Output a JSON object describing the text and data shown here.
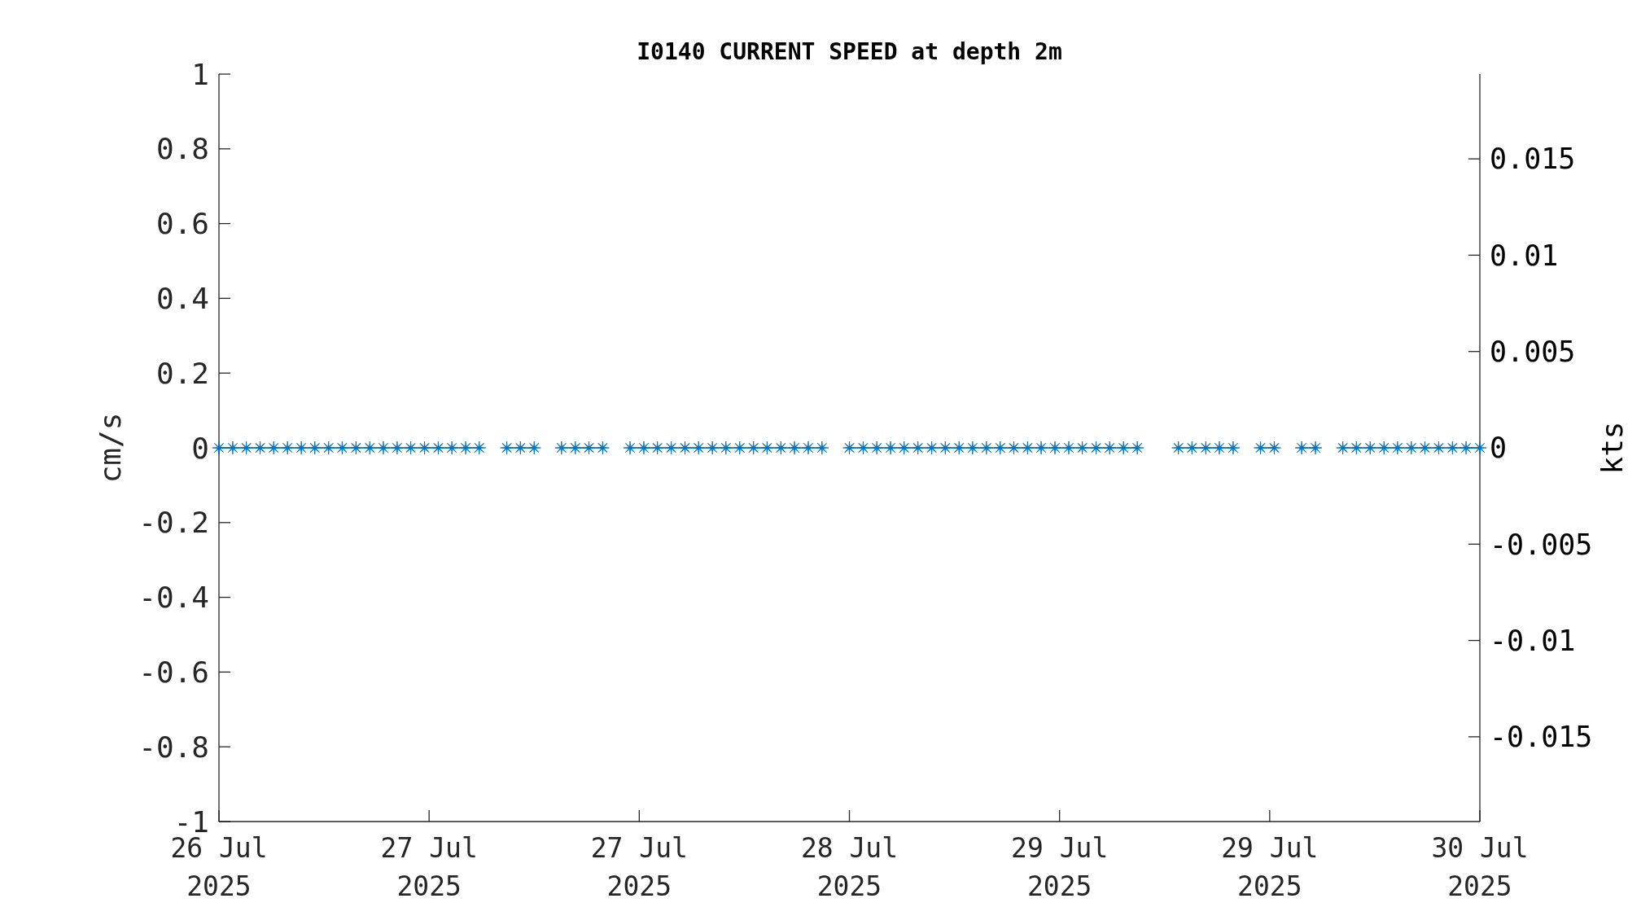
{
  "chart_data": {
    "type": "line",
    "title": "I0140 CURRENT SPEED at depth 2m",
    "ylabel": "cm/s",
    "y2label": "kts",
    "x": [
      "2025-07-26T08:00",
      "2025-07-26T09:03",
      "2025-07-26T10:05",
      "2025-07-26T11:08",
      "2025-07-26T12:10",
      "2025-07-26T13:13",
      "2025-07-26T14:16",
      "2025-07-26T15:18",
      "2025-07-26T16:21",
      "2025-07-26T17:23",
      "2025-07-26T18:26",
      "2025-07-26T19:29",
      "2025-07-26T20:31",
      "2025-07-26T21:34",
      "2025-07-26T22:36",
      "2025-07-26T23:39",
      "2025-07-27T00:42",
      "2025-07-27T01:44",
      "2025-07-27T02:47",
      "2025-07-27T03:49",
      "2025-07-27T04:52",
      "2025-07-27T05:55",
      "2025-07-27T06:57",
      "2025-07-27T08:00",
      "2025-07-27T09:03",
      "2025-07-27T10:05",
      "2025-07-27T11:08",
      "2025-07-27T12:10",
      "2025-07-27T13:13",
      "2025-07-27T14:16",
      "2025-07-27T15:18",
      "2025-07-27T16:21",
      "2025-07-27T17:23",
      "2025-07-27T18:26",
      "2025-07-27T19:29",
      "2025-07-27T20:31",
      "2025-07-27T21:34",
      "2025-07-27T22:36",
      "2025-07-27T23:39",
      "2025-07-28T00:42",
      "2025-07-28T01:44",
      "2025-07-28T02:47",
      "2025-07-28T03:49",
      "2025-07-28T04:52",
      "2025-07-28T05:55",
      "2025-07-28T06:57",
      "2025-07-28T08:00",
      "2025-07-28T09:03",
      "2025-07-28T10:05",
      "2025-07-28T11:08",
      "2025-07-28T12:10",
      "2025-07-28T13:13",
      "2025-07-28T14:16",
      "2025-07-28T15:18",
      "2025-07-28T16:21",
      "2025-07-28T17:23",
      "2025-07-28T18:26",
      "2025-07-28T19:29",
      "2025-07-28T20:31",
      "2025-07-28T21:34",
      "2025-07-28T22:36",
      "2025-07-28T23:39",
      "2025-07-29T00:42",
      "2025-07-29T01:44",
      "2025-07-29T02:47",
      "2025-07-29T03:49",
      "2025-07-29T04:52",
      "2025-07-29T05:55",
      "2025-07-29T06:57",
      "2025-07-29T08:00",
      "2025-07-29T09:03",
      "2025-07-29T10:05",
      "2025-07-29T11:08",
      "2025-07-29T12:10",
      "2025-07-29T13:13",
      "2025-07-29T14:16",
      "2025-07-29T15:18",
      "2025-07-29T16:21",
      "2025-07-29T17:23",
      "2025-07-29T18:26",
      "2025-07-29T19:29",
      "2025-07-29T20:31",
      "2025-07-29T21:34",
      "2025-07-29T22:36",
      "2025-07-29T23:39",
      "2025-07-30T00:42",
      "2025-07-30T01:44",
      "2025-07-30T02:47",
      "2025-07-30T03:49",
      "2025-07-30T04:52",
      "2025-07-30T05:55",
      "2025-07-30T06:57",
      "2025-07-30T08:00"
    ],
    "series": [
      {
        "color": "#0072bd",
        "values": [
          0,
          0,
          0,
          0,
          0,
          0,
          0,
          0,
          0,
          0,
          0,
          0,
          0,
          0,
          0,
          0,
          0,
          0,
          0,
          0,
          null,
          0,
          0,
          0,
          null,
          0,
          0,
          0,
          0,
          null,
          0,
          0,
          0,
          0,
          0,
          0,
          0,
          0,
          0,
          0,
          0,
          0,
          0,
          0,
          0,
          null,
          0,
          0,
          0,
          0,
          0,
          0,
          0,
          0,
          0,
          0,
          0,
          0,
          0,
          0,
          0,
          0,
          0,
          0,
          0,
          0,
          0,
          0,
          null,
          null,
          0,
          0,
          0,
          0,
          0,
          null,
          0,
          0,
          null,
          0,
          0,
          null,
          0,
          0,
          0,
          0,
          0,
          0,
          0,
          0,
          0,
          0,
          0
        ]
      }
    ],
    "marker": "star",
    "line_style": "solid",
    "xlim": [
      "2025-07-26T08:00",
      "2025-07-30T08:00"
    ],
    "xticks": [
      {
        "value": "2025-07-26T08:00",
        "label": "26 Jul\n2025"
      },
      {
        "value": "2025-07-27T00:00",
        "label": "27 Jul\n2025"
      },
      {
        "value": "2025-07-27T16:00",
        "label": "27 Jul\n2025"
      },
      {
        "value": "2025-07-28T08:00",
        "label": "28 Jul\n2025"
      },
      {
        "value": "2025-07-29T00:00",
        "label": "29 Jul\n2025"
      },
      {
        "value": "2025-07-29T16:00",
        "label": "29 Jul\n2025"
      },
      {
        "value": "2025-07-30T08:00",
        "label": "30 Jul\n2025"
      }
    ],
    "ylim": [
      -1,
      1
    ],
    "yticks": [
      -1,
      -0.8,
      -0.6,
      -0.4,
      -0.2,
      0,
      0.2,
      0.4,
      0.6,
      0.8,
      1
    ],
    "y2lim": [
      -0.0194,
      0.0194
    ],
    "y2ticks": [
      -0.015,
      -0.01,
      -0.005,
      0,
      0.005,
      0.01,
      0.015
    ]
  }
}
